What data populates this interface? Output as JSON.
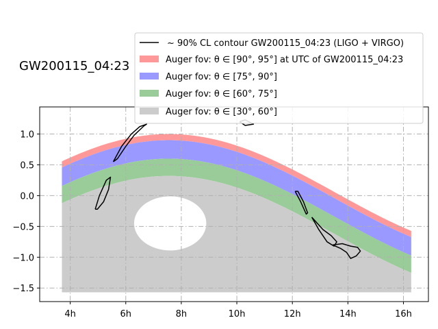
{
  "chart_data": {
    "type": "area",
    "title": "GW200115_04:23",
    "xlabel": "",
    "ylabel": "",
    "xlim": [
      2.9,
      16.9
    ],
    "ylim": [
      -1.72,
      1.44
    ],
    "x_ticks": [
      4,
      6,
      8,
      10,
      12,
      14,
      16
    ],
    "x_tick_labels": [
      "4h",
      "6h",
      "8h",
      "10h",
      "12h",
      "14h",
      "16h"
    ],
    "y_ticks": [
      -1.5,
      -1.0,
      -0.5,
      0.0,
      0.5,
      1.0
    ],
    "y_tick_labels": [
      "−1.5",
      "−1.0",
      "−0.5",
      "0.0",
      "0.5",
      "1.0"
    ],
    "grid": true,
    "legend_position": "top-right",
    "bands": {
      "x_range": [
        3.7,
        16.28
      ],
      "center_x": 7.55,
      "amplitude": 0.95,
      "offset": 0.05,
      "layers": [
        {
          "name": "Auger fov: θ ∈ [90°, 95°] at UTC of GW200115_04:23",
          "color": "#ff9999",
          "upper_shift": 0.0,
          "lower_shift": -0.1
        },
        {
          "name": "Auger fov: θ ∈ [75°, 90°]",
          "color": "#9999ff",
          "upper_shift": -0.1,
          "lower_shift": -0.4
        },
        {
          "name": "Auger fov: θ ∈ [60°, 75°]",
          "color": "#99cc99",
          "upper_shift": -0.4,
          "lower_shift": -0.68
        },
        {
          "name": "Auger fov: θ ∈ [30°, 60°]",
          "color": "#cccccc",
          "upper_shift": -0.68,
          "lower_shift": null,
          "floor": -1.57,
          "hole": {
            "center": [
              7.6,
              -0.45
            ],
            "x_radius": 1.3,
            "y_radius": 0.44
          }
        }
      ]
    },
    "contour": {
      "name": "~ 90% CL contour GW200115_04:23 (LIGO + VIRGO)",
      "color": "#000000",
      "segments": [
        [
          [
            5.55,
            0.55
          ],
          [
            5.85,
            0.8
          ],
          [
            6.2,
            1.0
          ],
          [
            6.5,
            1.12
          ],
          [
            6.75,
            1.16
          ],
          [
            6.65,
            1.13
          ],
          [
            6.3,
            0.98
          ],
          [
            6.0,
            0.8
          ],
          [
            5.7,
            0.6
          ],
          [
            5.55,
            0.55
          ]
        ],
        [
          [
            4.9,
            -0.22
          ],
          [
            5.05,
            0.0
          ],
          [
            5.3,
            0.25
          ],
          [
            5.45,
            0.3
          ],
          [
            5.38,
            0.1
          ],
          [
            5.2,
            -0.1
          ],
          [
            4.98,
            -0.22
          ],
          [
            4.9,
            -0.22
          ]
        ],
        [
          [
            12.1,
            0.07
          ],
          [
            12.3,
            -0.1
          ],
          [
            12.5,
            -0.3
          ],
          [
            12.55,
            -0.28
          ],
          [
            12.4,
            -0.1
          ],
          [
            12.2,
            0.07
          ],
          [
            12.1,
            0.07
          ]
        ],
        [
          [
            12.7,
            -0.35
          ],
          [
            12.95,
            -0.55
          ],
          [
            13.25,
            -0.75
          ],
          [
            13.5,
            -0.82
          ],
          [
            13.6,
            -0.75
          ],
          [
            13.4,
            -0.65
          ],
          [
            13.1,
            -0.55
          ],
          [
            12.9,
            -0.45
          ],
          [
            12.7,
            -0.35
          ]
        ],
        [
          [
            13.45,
            -0.8
          ],
          [
            13.75,
            -0.86
          ],
          [
            13.95,
            -0.92
          ],
          [
            14.1,
            -1.02
          ],
          [
            14.3,
            -0.98
          ],
          [
            14.45,
            -0.9
          ],
          [
            14.35,
            -0.84
          ],
          [
            14.1,
            -0.82
          ],
          [
            13.8,
            -0.78
          ],
          [
            13.45,
            -0.8
          ]
        ],
        [
          [
            10.1,
            1.2
          ],
          [
            10.3,
            1.23
          ],
          [
            10.6,
            1.16
          ],
          [
            10.3,
            1.14
          ],
          [
            10.1,
            1.2
          ]
        ]
      ]
    }
  }
}
